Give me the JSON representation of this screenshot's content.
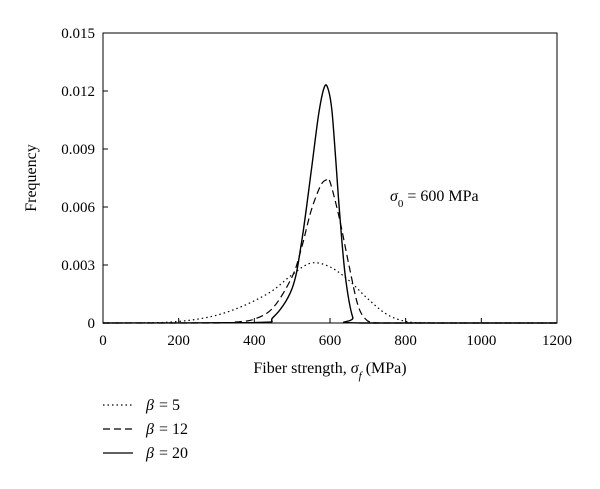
{
  "chart_data": {
    "type": "line",
    "xlabel_prefix": "Fiber strength, ",
    "xlabel_symbol": "σ",
    "xlabel_sub": "f",
    "xlabel_unit": " (MPa)",
    "ylabel": "Frequency",
    "xlim": [
      0,
      1200
    ],
    "ylim": [
      0,
      0.015
    ],
    "x_ticks": [
      "0",
      "200",
      "400",
      "600",
      "800",
      "1000",
      "1200"
    ],
    "y_ticks": [
      "0",
      "0.003",
      "0.006",
      "0.009",
      "0.012",
      "0.015"
    ],
    "annotation": {
      "symbol": "σ",
      "sub": "0",
      "text": " = 600 MPa"
    },
    "legend_position": "bottom-left",
    "series": [
      {
        "name_symbol": "β",
        "name_value": "= 5",
        "style": "dotted",
        "x": [
          0,
          100,
          150,
          200,
          250,
          300,
          350,
          400,
          450,
          500,
          550,
          600,
          650,
          700,
          750,
          800,
          850,
          900,
          1000,
          1200
        ],
        "y": [
          0,
          5e-06,
          2e-05,
          8e-05,
          0.0002,
          0.0004,
          0.00072,
          0.00115,
          0.0017,
          0.0025,
          0.0031,
          0.0029,
          0.0022,
          0.00125,
          0.00045,
          8e-05,
          1e-05,
          0,
          0,
          0
        ]
      },
      {
        "name_symbol": "β",
        "name_value": "= 12",
        "style": "dashed",
        "x": [
          0,
          300,
          350,
          400,
          450,
          500,
          525,
          550,
          575,
          590,
          600,
          625,
          650,
          675,
          700,
          725,
          750,
          1200
        ],
        "y": [
          0,
          0,
          5e-05,
          0.0002,
          0.0008,
          0.0024,
          0.0039,
          0.0058,
          0.0071,
          0.0074,
          0.0073,
          0.0054,
          0.003,
          0.00085,
          0.0001,
          1e-05,
          0,
          0
        ]
      },
      {
        "name_symbol": "β",
        "name_value": "= 20",
        "style": "solid",
        "x": [
          0,
          400,
          450,
          500,
          525,
          550,
          570,
          585,
          595,
          605,
          615,
          625,
          640,
          660,
          680,
          1200
        ],
        "y": [
          0,
          2e-05,
          0.0003,
          0.0018,
          0.0042,
          0.0078,
          0.0108,
          0.0122,
          0.0121,
          0.011,
          0.0085,
          0.0058,
          0.0025,
          0.0003,
          0,
          0
        ]
      }
    ]
  }
}
